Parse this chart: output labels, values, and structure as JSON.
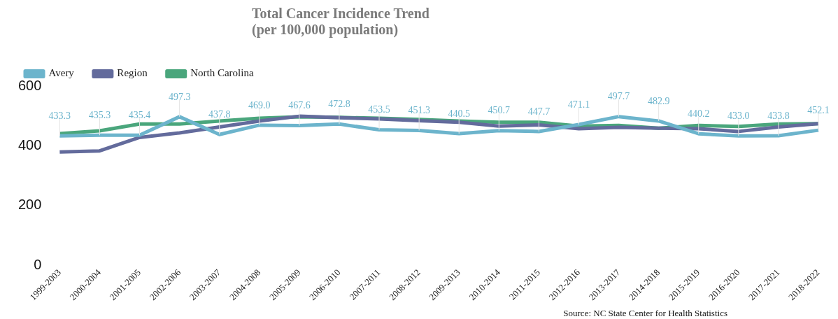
{
  "chart_data": {
    "type": "line",
    "title": "Total Cancer Incidence Trend\n(per 100,000 population)",
    "categories": [
      "1999-2003",
      "2000-2004",
      "2001-2005",
      "2002-2006",
      "2003-2007",
      "2004-2008",
      "2005-2009",
      "2006-2010",
      "2007-2011",
      "2008-2012",
      "2009-2013",
      "2010-2014",
      "2011-2015",
      "2012-2016",
      "2013-2017",
      "2014-2018",
      "2015-2019",
      "2016-2020",
      "2017-2021",
      "2018-2022"
    ],
    "series": [
      {
        "name": "Avery",
        "color": "#6cb4cc",
        "values": [
          433.3,
          435.3,
          435.4,
          497.3,
          437.8,
          469.0,
          467.6,
          472.8,
          453.5,
          451.3,
          440.5,
          450.7,
          447.7,
          471.1,
          497.7,
          482.9,
          440.2,
          433.0,
          433.8,
          452.1
        ],
        "value_labels": [
          "433.3",
          "435.3",
          "435.4",
          "497.3",
          "437.8",
          "469.0",
          "467.6",
          "472.8",
          "453.5",
          "451.3",
          "440.5",
          "450.7",
          "447.7",
          "471.1",
          "497.7",
          "482.9",
          "440.2",
          "433.0",
          "433.8",
          "452.1"
        ]
      },
      {
        "name": "Region",
        "color": "#636b9c",
        "values": [
          379,
          383,
          428,
          443,
          463,
          483,
          499,
          494,
          490,
          484,
          479,
          466,
          470,
          457,
          462,
          459,
          457,
          448,
          463,
          474
        ]
      },
      {
        "name": "North Carolina",
        "color": "#4aa67c",
        "values": [
          441,
          450,
          473,
          473,
          483,
          492,
          497,
          495,
          492,
          488,
          483,
          479,
          479,
          466,
          468,
          459,
          468,
          465,
          473,
          474
        ]
      }
    ],
    "ylim": [
      0,
      600
    ],
    "yticks": [
      0,
      200,
      400,
      600
    ],
    "grid": false,
    "legend": "top left",
    "marker": "none",
    "line_style": "solid",
    "annotations": [
      "Source: NC State Center for Health Statistics"
    ]
  }
}
